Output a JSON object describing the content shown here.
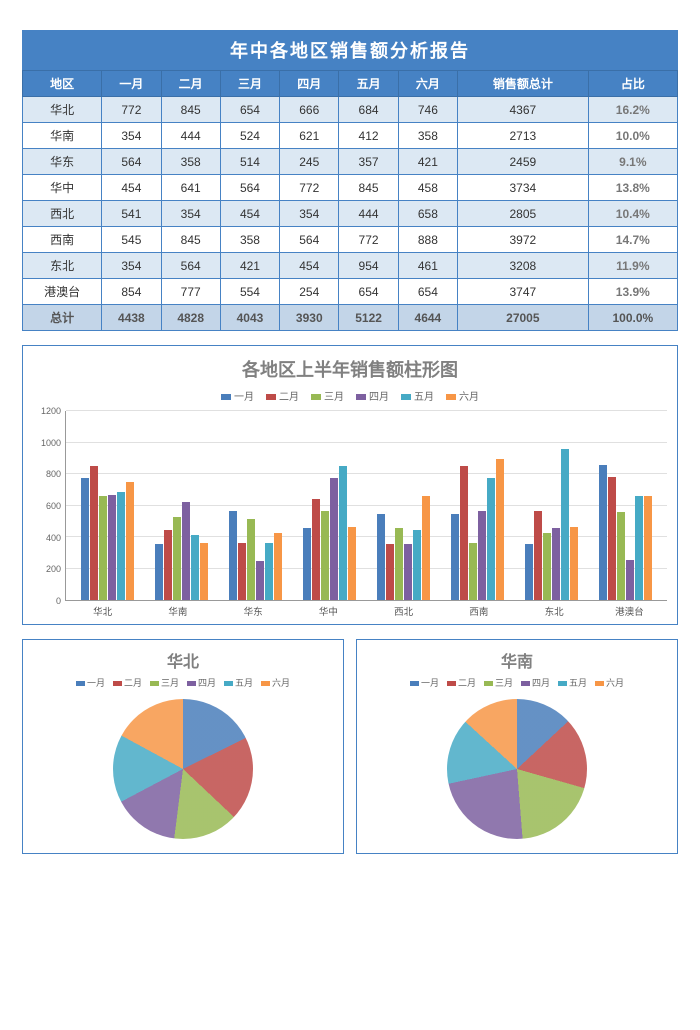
{
  "title": "年中各地区销售额分析报告",
  "months": [
    "一月",
    "二月",
    "三月",
    "四月",
    "五月",
    "六月"
  ],
  "columns": [
    "地区",
    "一月",
    "二月",
    "三月",
    "四月",
    "五月",
    "六月",
    "销售额总计",
    "占比"
  ],
  "series_colors": [
    "#4a7ebb",
    "#be4b48",
    "#98b954",
    "#7d60a0",
    "#46aac5",
    "#f79646"
  ],
  "table": {
    "header_bg": "#4682c4",
    "header_fg": "#ffffff",
    "border_color": "#4682c4",
    "alt_row_bg": "#dce8f3",
    "total_row_bg": "#c3d5e8",
    "rows": [
      {
        "region": "华北",
        "vals": [
          772,
          845,
          654,
          666,
          684,
          746
        ],
        "total": 4367,
        "pct": "16.2%"
      },
      {
        "region": "华南",
        "vals": [
          354,
          444,
          524,
          621,
          412,
          358
        ],
        "total": 2713,
        "pct": "10.0%"
      },
      {
        "region": "华东",
        "vals": [
          564,
          358,
          514,
          245,
          357,
          421
        ],
        "total": 2459,
        "pct": "9.1%"
      },
      {
        "region": "华中",
        "vals": [
          454,
          641,
          564,
          772,
          845,
          458
        ],
        "total": 3734,
        "pct": "13.8%"
      },
      {
        "region": "西北",
        "vals": [
          541,
          354,
          454,
          354,
          444,
          658
        ],
        "total": 2805,
        "pct": "10.4%"
      },
      {
        "region": "西南",
        "vals": [
          545,
          845,
          358,
          564,
          772,
          888
        ],
        "total": 3972,
        "pct": "14.7%"
      },
      {
        "region": "东北",
        "vals": [
          354,
          564,
          421,
          454,
          954,
          461
        ],
        "total": 3208,
        "pct": "11.9%"
      },
      {
        "region": "港澳台",
        "vals": [
          854,
          777,
          554,
          254,
          654,
          654
        ],
        "total": 3747,
        "pct": "13.9%"
      }
    ],
    "totals": {
      "label": "总计",
      "vals": [
        4438,
        4828,
        4043,
        3930,
        5122,
        4644
      ],
      "total": 27005,
      "pct": "100.0%"
    }
  },
  "bar_chart": {
    "title": "各地区上半年销售额柱形图",
    "type": "bar",
    "ylim": [
      0,
      1200
    ],
    "ytick_step": 200,
    "grid_color": "#e0e0e0",
    "background": "#ffffff",
    "title_fontsize": 18,
    "label_fontsize": 10
  },
  "pies": [
    {
      "title": "华北",
      "region_index": 0
    },
    {
      "title": "华南",
      "region_index": 1
    }
  ]
}
